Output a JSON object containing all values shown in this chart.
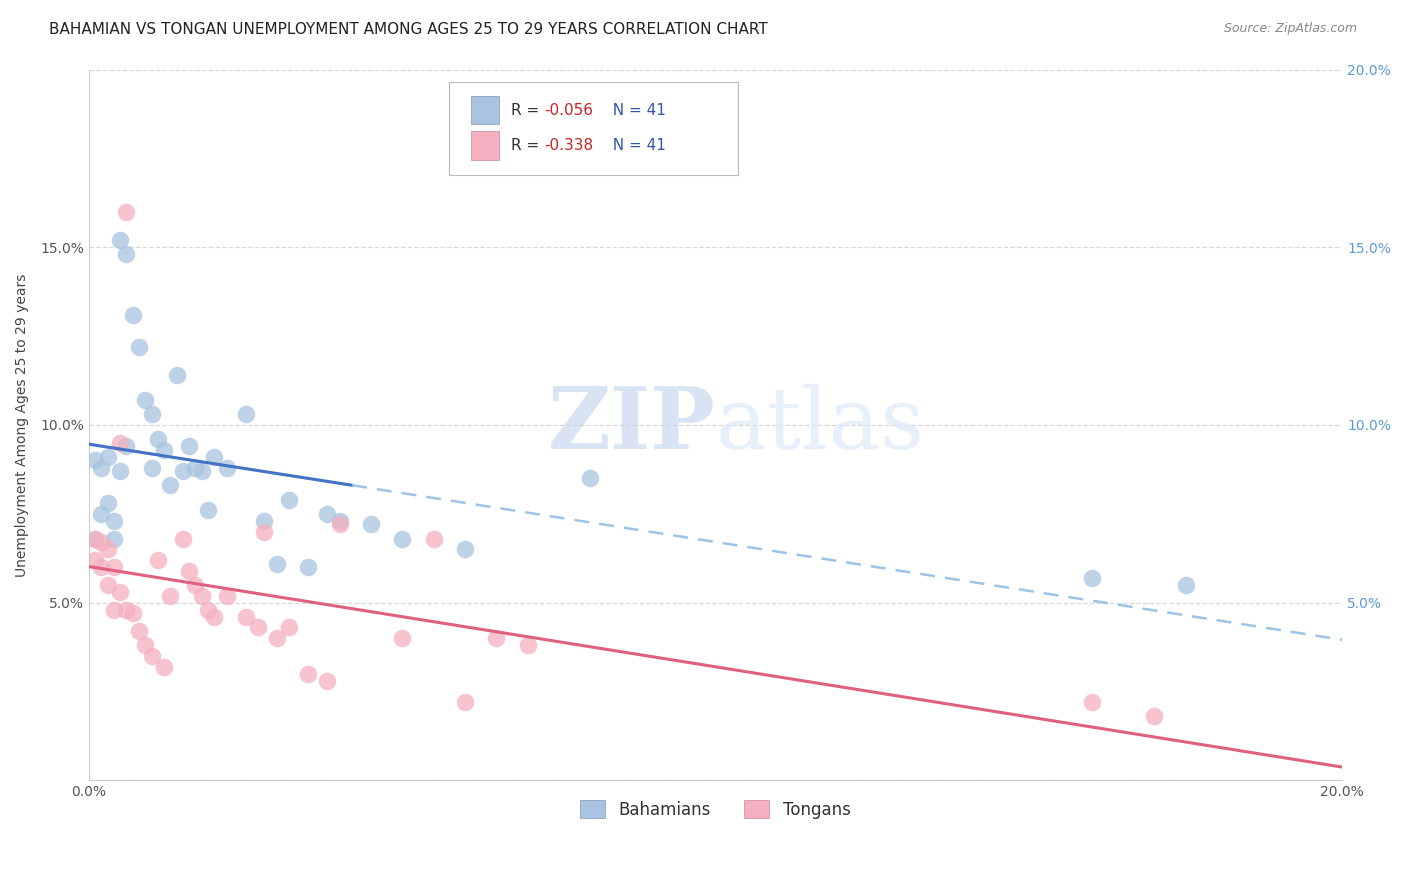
{
  "title": "BAHAMIAN VS TONGAN UNEMPLOYMENT AMONG AGES 25 TO 29 YEARS CORRELATION CHART",
  "source": "Source: ZipAtlas.com",
  "ylabel": "Unemployment Among Ages 25 to 29 years",
  "xlim": [
    0.0,
    0.2
  ],
  "ylim": [
    0.0,
    0.2
  ],
  "bahamians_color": "#a8c4e0",
  "tongans_color": "#f4afc0",
  "R_bahamians": -0.056,
  "N_bahamians": 41,
  "R_tongans": -0.338,
  "N_tongans": 41,
  "bahamians_x": [
    0.001,
    0.001,
    0.002,
    0.002,
    0.003,
    0.003,
    0.004,
    0.004,
    0.005,
    0.005,
    0.006,
    0.006,
    0.007,
    0.008,
    0.009,
    0.01,
    0.01,
    0.011,
    0.012,
    0.013,
    0.014,
    0.015,
    0.016,
    0.017,
    0.018,
    0.019,
    0.02,
    0.022,
    0.025,
    0.028,
    0.03,
    0.032,
    0.035,
    0.038,
    0.04,
    0.045,
    0.05,
    0.06,
    0.08,
    0.16,
    0.175
  ],
  "bahamians_y": [
    0.068,
    0.09,
    0.088,
    0.075,
    0.091,
    0.078,
    0.073,
    0.068,
    0.152,
    0.087,
    0.148,
    0.094,
    0.131,
    0.122,
    0.107,
    0.103,
    0.088,
    0.096,
    0.093,
    0.083,
    0.114,
    0.087,
    0.094,
    0.088,
    0.087,
    0.076,
    0.091,
    0.088,
    0.103,
    0.073,
    0.061,
    0.079,
    0.06,
    0.075,
    0.073,
    0.072,
    0.068,
    0.065,
    0.085,
    0.057,
    0.055
  ],
  "tongans_x": [
    0.001,
    0.001,
    0.002,
    0.002,
    0.003,
    0.003,
    0.004,
    0.004,
    0.005,
    0.005,
    0.006,
    0.006,
    0.007,
    0.008,
    0.009,
    0.01,
    0.011,
    0.012,
    0.013,
    0.015,
    0.016,
    0.017,
    0.018,
    0.019,
    0.02,
    0.022,
    0.025,
    0.027,
    0.028,
    0.03,
    0.032,
    0.035,
    0.038,
    0.04,
    0.05,
    0.055,
    0.06,
    0.065,
    0.07,
    0.16,
    0.17
  ],
  "tongans_y": [
    0.068,
    0.062,
    0.067,
    0.06,
    0.065,
    0.055,
    0.06,
    0.048,
    0.053,
    0.095,
    0.048,
    0.16,
    0.047,
    0.042,
    0.038,
    0.035,
    0.062,
    0.032,
    0.052,
    0.068,
    0.059,
    0.055,
    0.052,
    0.048,
    0.046,
    0.052,
    0.046,
    0.043,
    0.07,
    0.04,
    0.043,
    0.03,
    0.028,
    0.072,
    0.04,
    0.068,
    0.022,
    0.04,
    0.038,
    0.022,
    0.018
  ],
  "background_color": "#ffffff",
  "grid_color": "#d8d8d8",
  "title_fontsize": 11,
  "axis_label_fontsize": 10,
  "tick_fontsize": 10,
  "source_fontsize": 9,
  "right_ytick_color": "#5b9bd5",
  "blue_line_color": "#4472c4",
  "blue_dash_color": "#9dc3e6",
  "pink_line_color": "#e06080"
}
